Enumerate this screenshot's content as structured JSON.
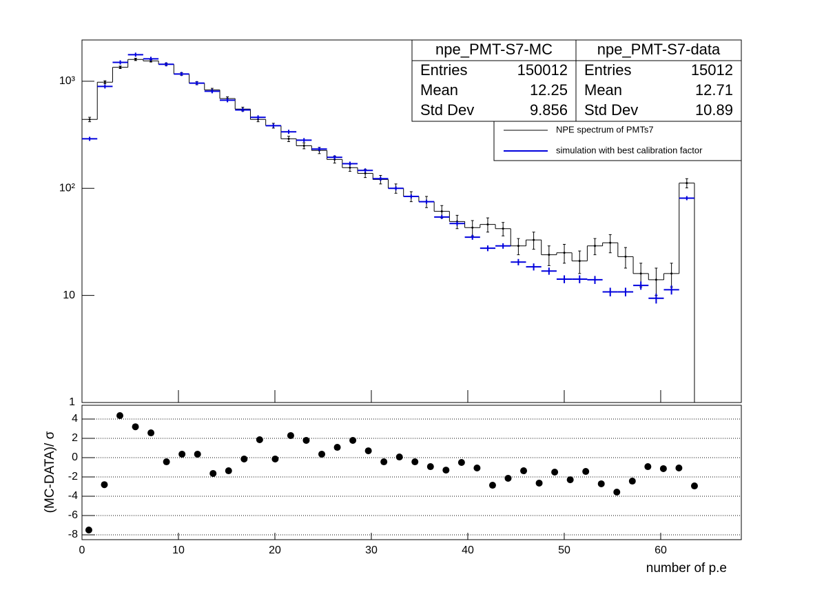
{
  "chart_data": [
    {
      "type": "histogram",
      "bins": [
        0,
        1.5875,
        3.175,
        4.7625,
        6.35,
        7.9375,
        9.525,
        11.1125,
        12.7,
        14.2875,
        15.875,
        17.4625,
        19.05,
        20.6375,
        22.225,
        23.8125,
        25.4,
        26.9875,
        28.575,
        30.1625,
        31.75,
        33.3375,
        34.925,
        36.5125,
        38.1,
        39.6875,
        41.275,
        42.8625,
        44.45,
        46.0375,
        47.625,
        49.2125,
        50.8,
        52.3875,
        53.975,
        55.5625,
        57.15,
        58.7375,
        60.325,
        61.9125,
        63.5
      ],
      "series": [
        {
          "name": "NPE spectrum of PMTs7",
          "color": "#000000",
          "style": "hist",
          "values": [
            440,
            980,
            1350,
            1600,
            1550,
            1440,
            1170,
            960,
            830,
            690,
            550,
            440,
            385,
            290,
            250,
            226,
            186,
            156,
            138,
            121,
            100,
            84,
            75,
            61,
            49,
            43,
            46,
            42,
            29,
            33,
            24,
            25,
            21,
            29,
            31,
            23,
            16,
            14,
            16,
            112
          ],
          "errors": [
            21,
            31,
            37,
            40,
            39,
            38,
            34,
            31,
            29,
            26,
            23,
            21,
            20,
            17,
            16,
            15,
            14,
            12,
            12,
            11,
            10,
            9,
            9,
            8,
            7,
            7,
            7,
            6,
            5,
            6,
            5,
            5,
            5,
            5,
            6,
            5,
            4,
            4,
            4,
            11
          ]
        },
        {
          "name": "simulation with best calibration factor",
          "color": "#0000dd",
          "style": "marker",
          "values": [
            290,
            895,
            1500,
            1770,
            1620,
            1440,
            1170,
            960,
            807,
            665,
            540,
            460,
            385,
            337,
            282,
            233,
            195,
            170,
            147,
            123,
            100,
            84,
            75,
            54,
            47,
            35,
            27.6,
            29,
            20.5,
            18.5,
            16.9,
            14.2,
            14.2,
            14,
            10.8,
            10.8,
            12.4,
            9.4,
            11.3,
            81
          ],
          "errors": [
            5.4,
            9.5,
            12.2,
            13.3,
            12.7,
            12,
            10.8,
            9.8,
            9,
            8.2,
            7.3,
            6.8,
            6.2,
            5.8,
            5.3,
            4.8,
            4.4,
            4.1,
            3.8,
            3.5,
            3.2,
            2.9,
            2.7,
            2.3,
            2.2,
            1.9,
            1.7,
            1.7,
            1.4,
            1.4,
            1.3,
            1.2,
            1.2,
            1.2,
            1,
            1,
            1.1,
            1,
            1.1,
            2.8
          ]
        }
      ],
      "xlim": [
        0,
        68.36
      ],
      "ylim": [
        1,
        2430
      ],
      "log_y": true,
      "yticks": [
        1,
        10,
        {
          "value": 100,
          "label": "10²"
        },
        {
          "value": 1000,
          "label": "10³"
        }
      ],
      "stats_labels": [
        "Entries",
        "Mean",
        "Std Dev"
      ],
      "stats": [
        {
          "name": "npe_PMT-S7-MC",
          "color": "#0000ff",
          "entries": 150012,
          "mean": 12.25,
          "std_dev": 9.856
        },
        {
          "name": "npe_PMT-S7-data",
          "color": "#000000",
          "entries": 15012,
          "mean": 12.71,
          "std_dev": 10.89
        }
      ]
    },
    {
      "type": "scatter",
      "x": [
        0.71,
        2.32,
        3.93,
        5.54,
        7.15,
        8.76,
        10.37,
        11.98,
        13.59,
        15.2,
        16.81,
        18.42,
        20.03,
        21.64,
        23.25,
        24.86,
        26.47,
        28.08,
        29.69,
        31.3,
        32.91,
        34.52,
        36.13,
        37.74,
        39.35,
        40.96,
        42.57,
        44.18,
        45.79,
        47.4,
        49.01,
        50.62,
        52.23,
        53.84,
        55.45,
        57.06,
        58.67,
        60.28,
        61.89,
        63.5
      ],
      "values": [
        -7.5,
        -2.8,
        4.36,
        3.2,
        2.57,
        -0.43,
        0.36,
        0.36,
        -1.64,
        -1.36,
        -0.14,
        1.86,
        -0.14,
        2.29,
        1.79,
        0.36,
        1.07,
        1.79,
        0.71,
        -0.43,
        0.07,
        -0.43,
        -0.93,
        -1.29,
        -0.5,
        -1.07,
        -2.86,
        -2.14,
        -1.36,
        -2.64,
        -1.5,
        -2.29,
        -1.43,
        -2.71,
        -3.57,
        -2.43,
        -0.93,
        -1.14,
        -1.07,
        -2.93
      ],
      "color": "#000000",
      "xlim": [
        0,
        68.36
      ],
      "xticks": [
        0,
        10,
        20,
        30,
        40,
        50,
        60
      ],
      "ylim": [
        -8.5,
        5.43
      ],
      "yticks": [
        -8,
        -6,
        -4,
        -2,
        0,
        2,
        4
      ],
      "grid": true,
      "xlabel": "number of p.e",
      "ylabel": "(MC-DATA)/ σ"
    }
  ]
}
